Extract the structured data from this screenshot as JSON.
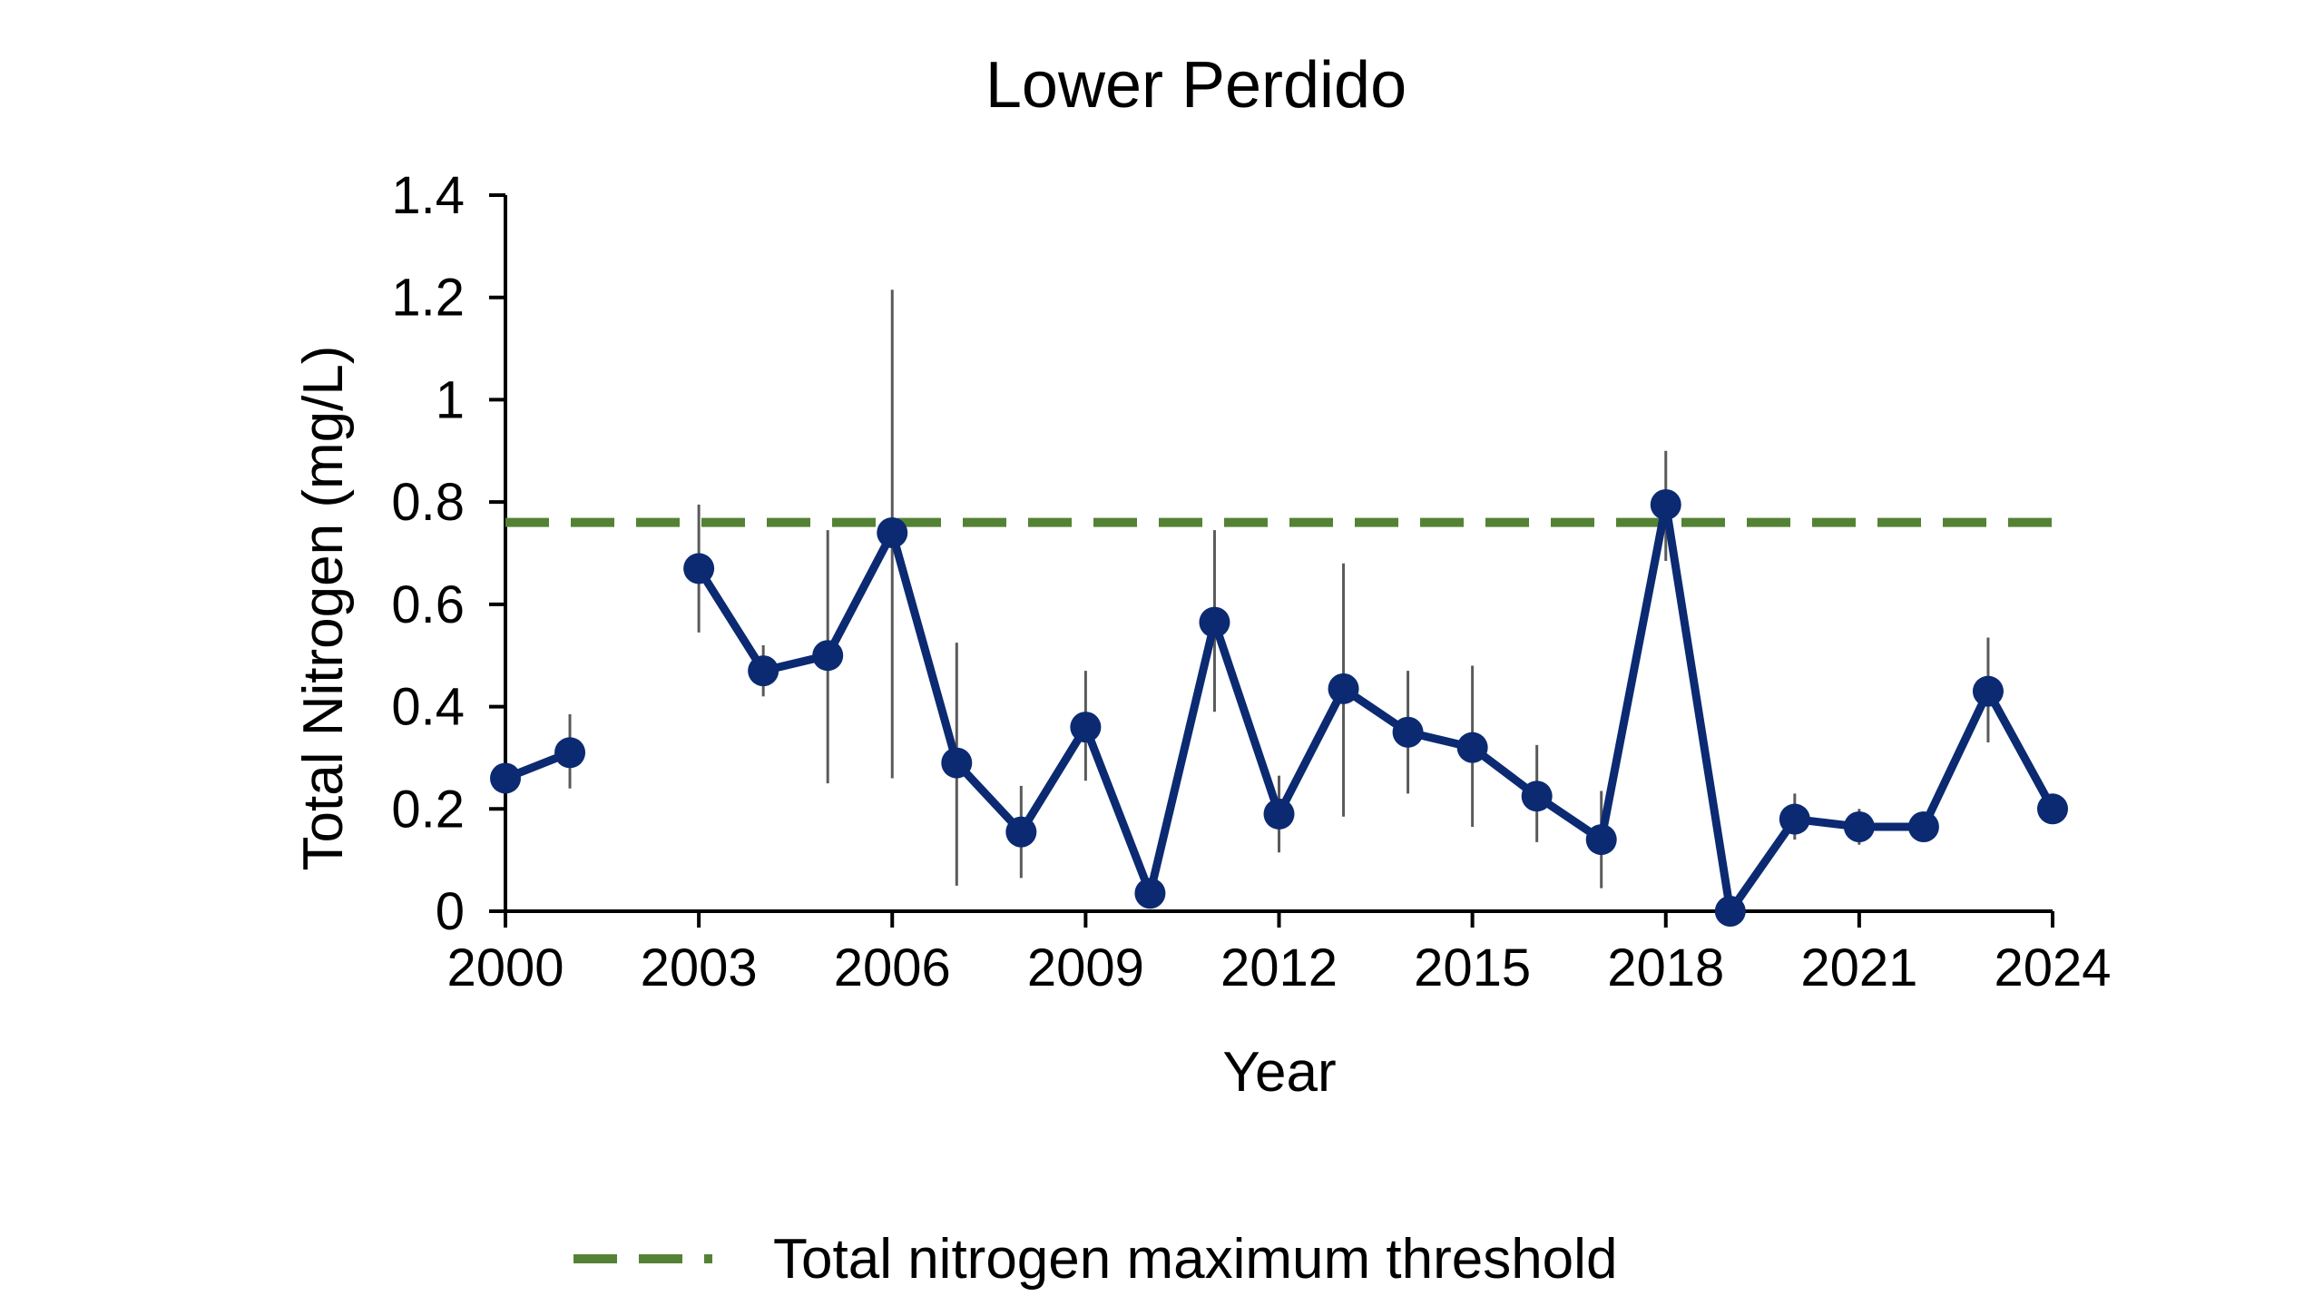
{
  "chart_data": {
    "type": "line",
    "title": "Lower Perdido",
    "xlabel": "Year",
    "ylabel": "Total Nitrogen (mg/L)",
    "xlim": [
      2000,
      2024
    ],
    "ylim": [
      0,
      1.4
    ],
    "x_ticks": [
      2000,
      2003,
      2006,
      2009,
      2012,
      2015,
      2018,
      2021,
      2024
    ],
    "y_ticks": [
      0,
      0.2,
      0.4,
      0.6,
      0.8,
      1,
      1.2,
      1.4
    ],
    "y_tick_labels": [
      "0",
      "0.2",
      "0.4",
      "0.6",
      "0.8",
      "1",
      "1.2",
      "1.4"
    ],
    "grid": false,
    "legend_position": "bottom",
    "series": [
      {
        "color": "#0b2a72",
        "x": [
          2000,
          2001,
          2002,
          2003,
          2004,
          2005,
          2006,
          2007,
          2008,
          2009,
          2010,
          2011,
          2012,
          2013,
          2014,
          2015,
          2016,
          2017,
          2018,
          2019,
          2020,
          2021,
          2022,
          2023,
          2024
        ],
        "y": [
          0.26,
          0.31,
          null,
          0.67,
          0.47,
          0.5,
          0.74,
          0.29,
          0.155,
          0.36,
          0.035,
          0.565,
          0.19,
          0.435,
          0.35,
          0.32,
          0.225,
          0.14,
          0.795,
          0.0,
          0.18,
          0.165,
          0.165,
          0.43,
          0.2
        ],
        "error_low": [
          null,
          0.24,
          null,
          0.545,
          0.42,
          0.25,
          0.26,
          0.05,
          0.065,
          0.255,
          null,
          0.39,
          0.115,
          0.185,
          0.23,
          0.165,
          0.135,
          0.045,
          0.685,
          null,
          0.14,
          0.13,
          null,
          0.33,
          null
        ],
        "error_high": [
          null,
          0.385,
          null,
          0.795,
          0.52,
          0.745,
          1.215,
          0.525,
          0.245,
          0.47,
          null,
          0.745,
          0.265,
          0.68,
          0.47,
          0.48,
          0.325,
          0.235,
          0.9,
          null,
          0.23,
          0.2,
          null,
          0.535,
          null
        ]
      }
    ],
    "threshold": {
      "name": "Total nitrogen maximum threshold",
      "value": 0.76,
      "color": "#548235",
      "style": "dashed"
    },
    "error_bar_color": "#5a5a5a",
    "axis_color": "#000000"
  }
}
